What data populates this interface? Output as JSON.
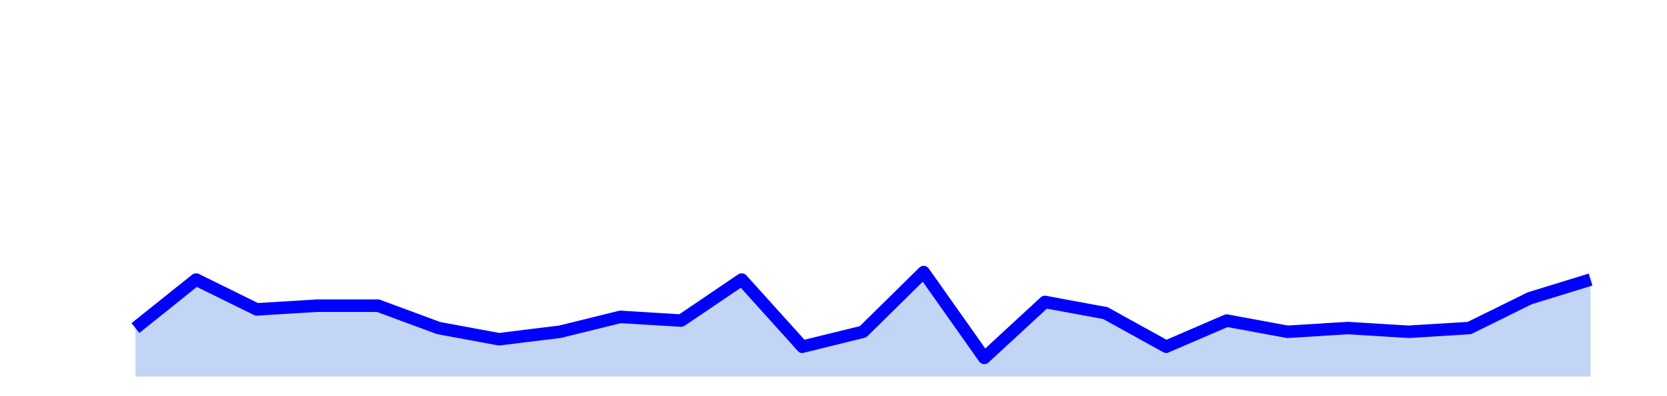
{
  "chart_data": {
    "type": "area",
    "title": "",
    "xlabel": "",
    "ylabel": "",
    "grid": false,
    "legend": "none",
    "x": [
      1,
      2,
      3,
      4,
      5,
      6,
      7,
      8,
      9,
      10,
      11,
      12,
      13,
      14,
      15,
      16,
      17,
      18,
      19,
      20,
      21,
      22,
      23,
      24,
      25
    ],
    "series": [
      {
        "values": [
          13,
          26,
          18,
          19,
          19,
          13,
          10,
          12,
          16,
          15,
          26,
          8,
          12,
          28,
          5,
          20,
          17,
          8,
          15,
          12,
          13,
          12,
          13,
          21,
          26
        ]
      }
    ],
    "ylim": [
      0,
      100
    ],
    "colors": {
      "line": "#0000ff",
      "fill": "#c3d5f5",
      "background": "#ffffff"
    }
  }
}
